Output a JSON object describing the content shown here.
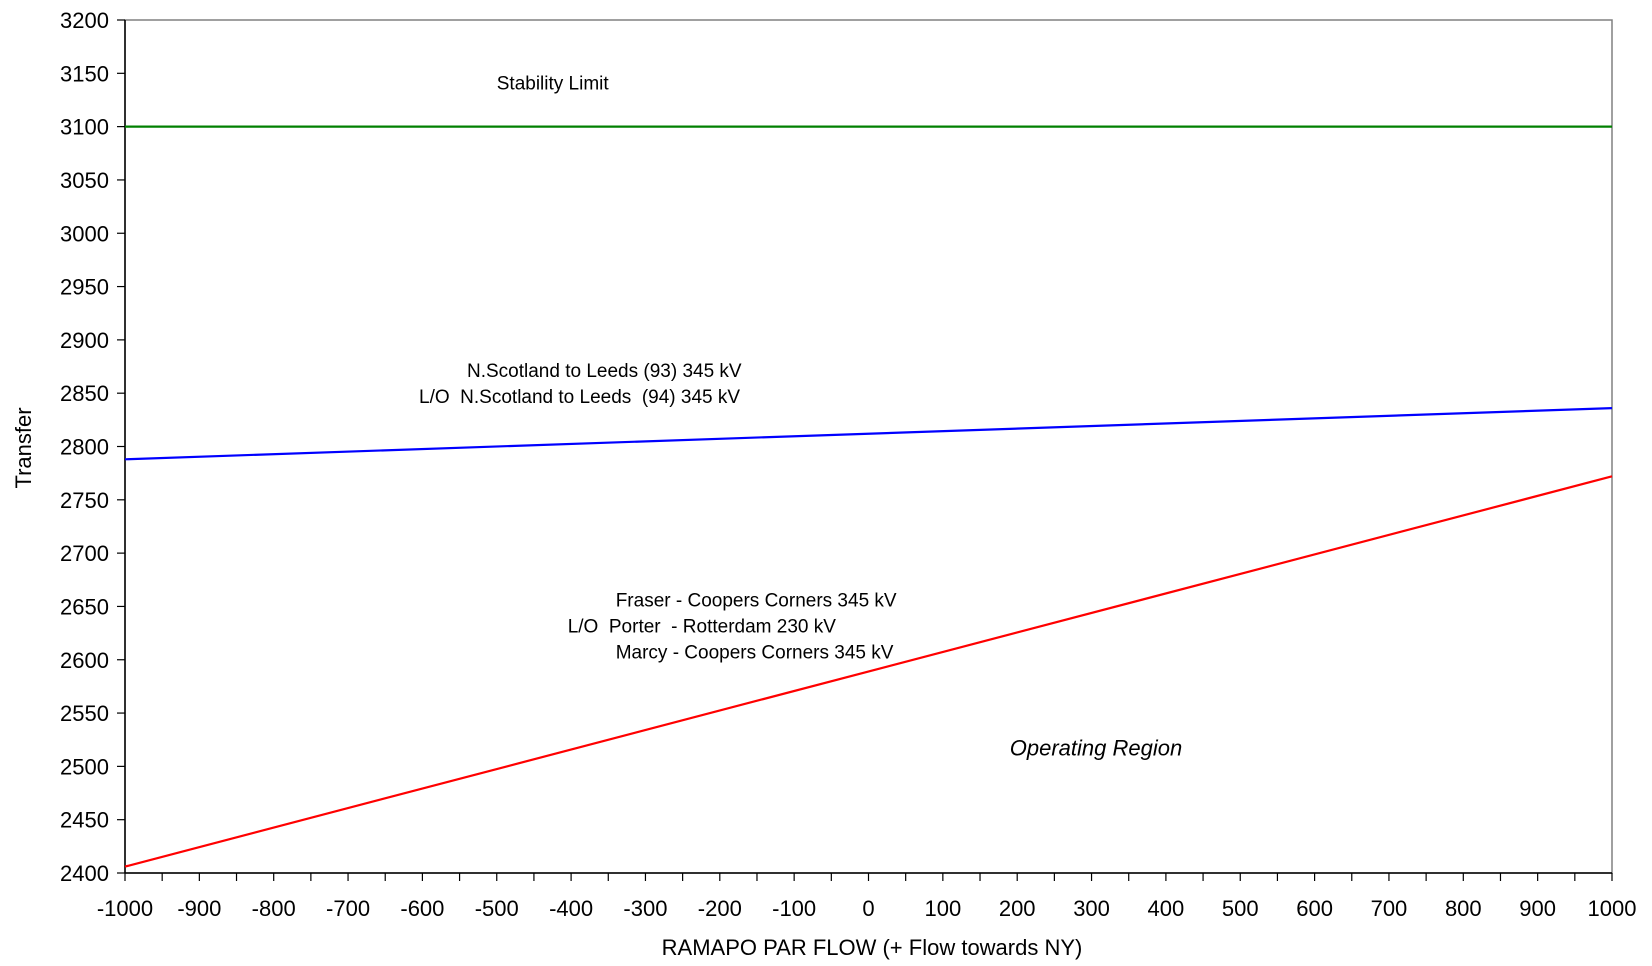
{
  "chart_data": {
    "type": "line",
    "title": "",
    "xlabel": "RAMAPO PAR FLOW (+ Flow towards NY)",
    "ylabel": "Transfer",
    "xlim": [
      -1000,
      1000
    ],
    "ylim": [
      2400,
      3200
    ],
    "x_ticks": [
      -1000,
      -900,
      -800,
      -700,
      -600,
      -500,
      -400,
      -300,
      -200,
      -100,
      0,
      100,
      200,
      300,
      400,
      500,
      600,
      700,
      800,
      900,
      1000
    ],
    "x_tick_labels": [
      "-1000",
      "-900",
      "-800",
      "-700",
      "-600",
      "-500",
      "-400",
      "-300",
      "-200",
      "-100",
      "0",
      "100",
      "200",
      "300",
      "400",
      "500",
      "600",
      "700",
      "800",
      "900",
      "1000"
    ],
    "y_ticks": [
      2400,
      2450,
      2500,
      2550,
      2600,
      2650,
      2700,
      2750,
      2800,
      2850,
      2900,
      2950,
      3000,
      3050,
      3100,
      3150,
      3200
    ],
    "y_tick_labels": [
      "2400",
      "2450",
      "2500",
      "2550",
      "2600",
      "2650",
      "2700",
      "2750",
      "2800",
      "2850",
      "2900",
      "2950",
      "3000",
      "3050",
      "3100",
      "3150",
      "3200"
    ],
    "grid": false,
    "legend": "none",
    "series": [
      {
        "color": "#008000",
        "x": [
          -1000,
          1000
        ],
        "y": [
          3100,
          3100
        ]
      },
      {
        "color": "#0000ff",
        "x": [
          -1000,
          1000
        ],
        "y": [
          2788,
          2836
        ]
      },
      {
        "color": "#ff0000",
        "x": [
          -1000,
          1000
        ],
        "y": [
          2406,
          2772
        ]
      }
    ],
    "annotations": {
      "stability": {
        "lines": [
          "Stability Limit"
        ],
        "x": -500,
        "y": 3135
      },
      "nscotland": {
        "lines": [
          "N.Scotland to Leeds (93) 345 kV",
          "L/O  N.Scotland to Leeds  (94) 345 kV"
        ],
        "x": -540,
        "y": 2865
      },
      "fraser": {
        "lines": [
          "Fraser - Coopers Corners 345 kV",
          "L/O  Porter  - Rotterdam 230 kV",
          "Marcy - Coopers Corners 345 kV"
        ],
        "x": -340,
        "y": 2650
      },
      "operating": {
        "lines": [
          "Operating Region"
        ],
        "x": 190,
        "y": 2510
      }
    },
    "frame_color": "#808080"
  }
}
